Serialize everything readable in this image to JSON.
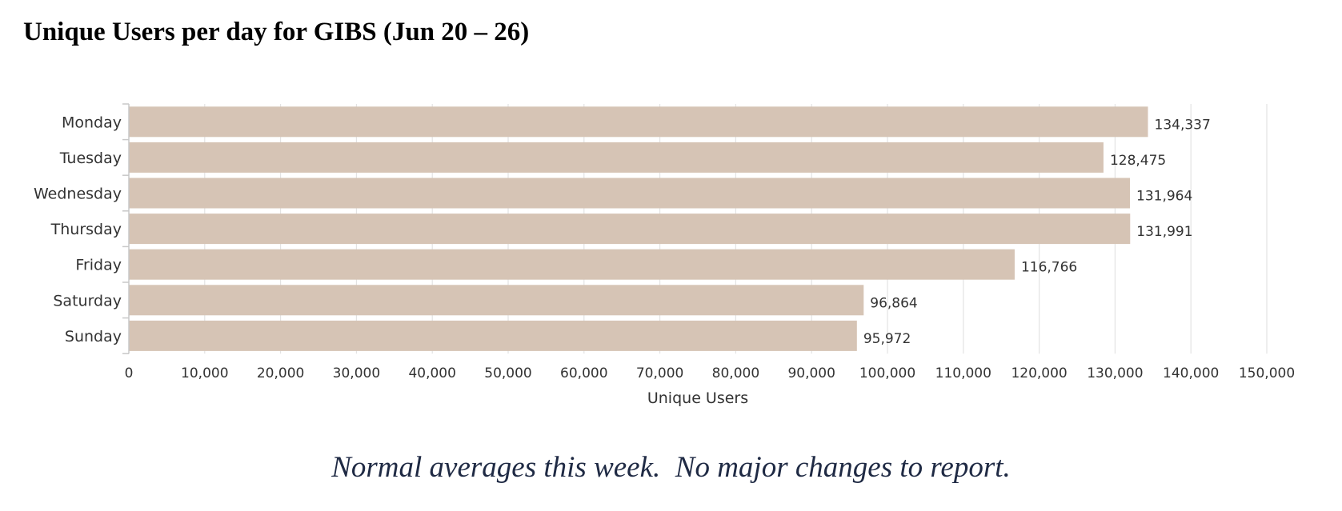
{
  "title": "Unique Users per day for GIBS (Jun 20 – 26)",
  "chart_data": {
    "type": "bar",
    "orientation": "horizontal",
    "categories": [
      "Monday",
      "Tuesday",
      "Wednesday",
      "Thursday",
      "Friday",
      "Saturday",
      "Sunday"
    ],
    "values": [
      134337,
      128475,
      131964,
      131991,
      116766,
      96864,
      95972
    ],
    "value_labels": [
      "134,337",
      "128,475",
      "131,964",
      "131,991",
      "116,766",
      "96,864",
      "95,972"
    ],
    "xlabel": "Unique Users",
    "ylabel": "",
    "xlim": [
      0,
      150000
    ],
    "ticks": [
      0,
      10000,
      20000,
      30000,
      40000,
      50000,
      60000,
      70000,
      80000,
      90000,
      100000,
      110000,
      120000,
      130000,
      140000,
      150000
    ],
    "tick_labels": [
      "0",
      "10,000",
      "20,000",
      "30,000",
      "40,000",
      "50,000",
      "60,000",
      "70,000",
      "80,000",
      "90,000",
      "100,000",
      "110,000",
      "120,000",
      "130,000",
      "140,000",
      "150,000"
    ],
    "grid": true,
    "bar_color": "#d6c4b5",
    "grid_color": "#e3e3e3",
    "axis_color": "#c8c8c8"
  },
  "note": "Normal averages this week.  No major changes to report."
}
